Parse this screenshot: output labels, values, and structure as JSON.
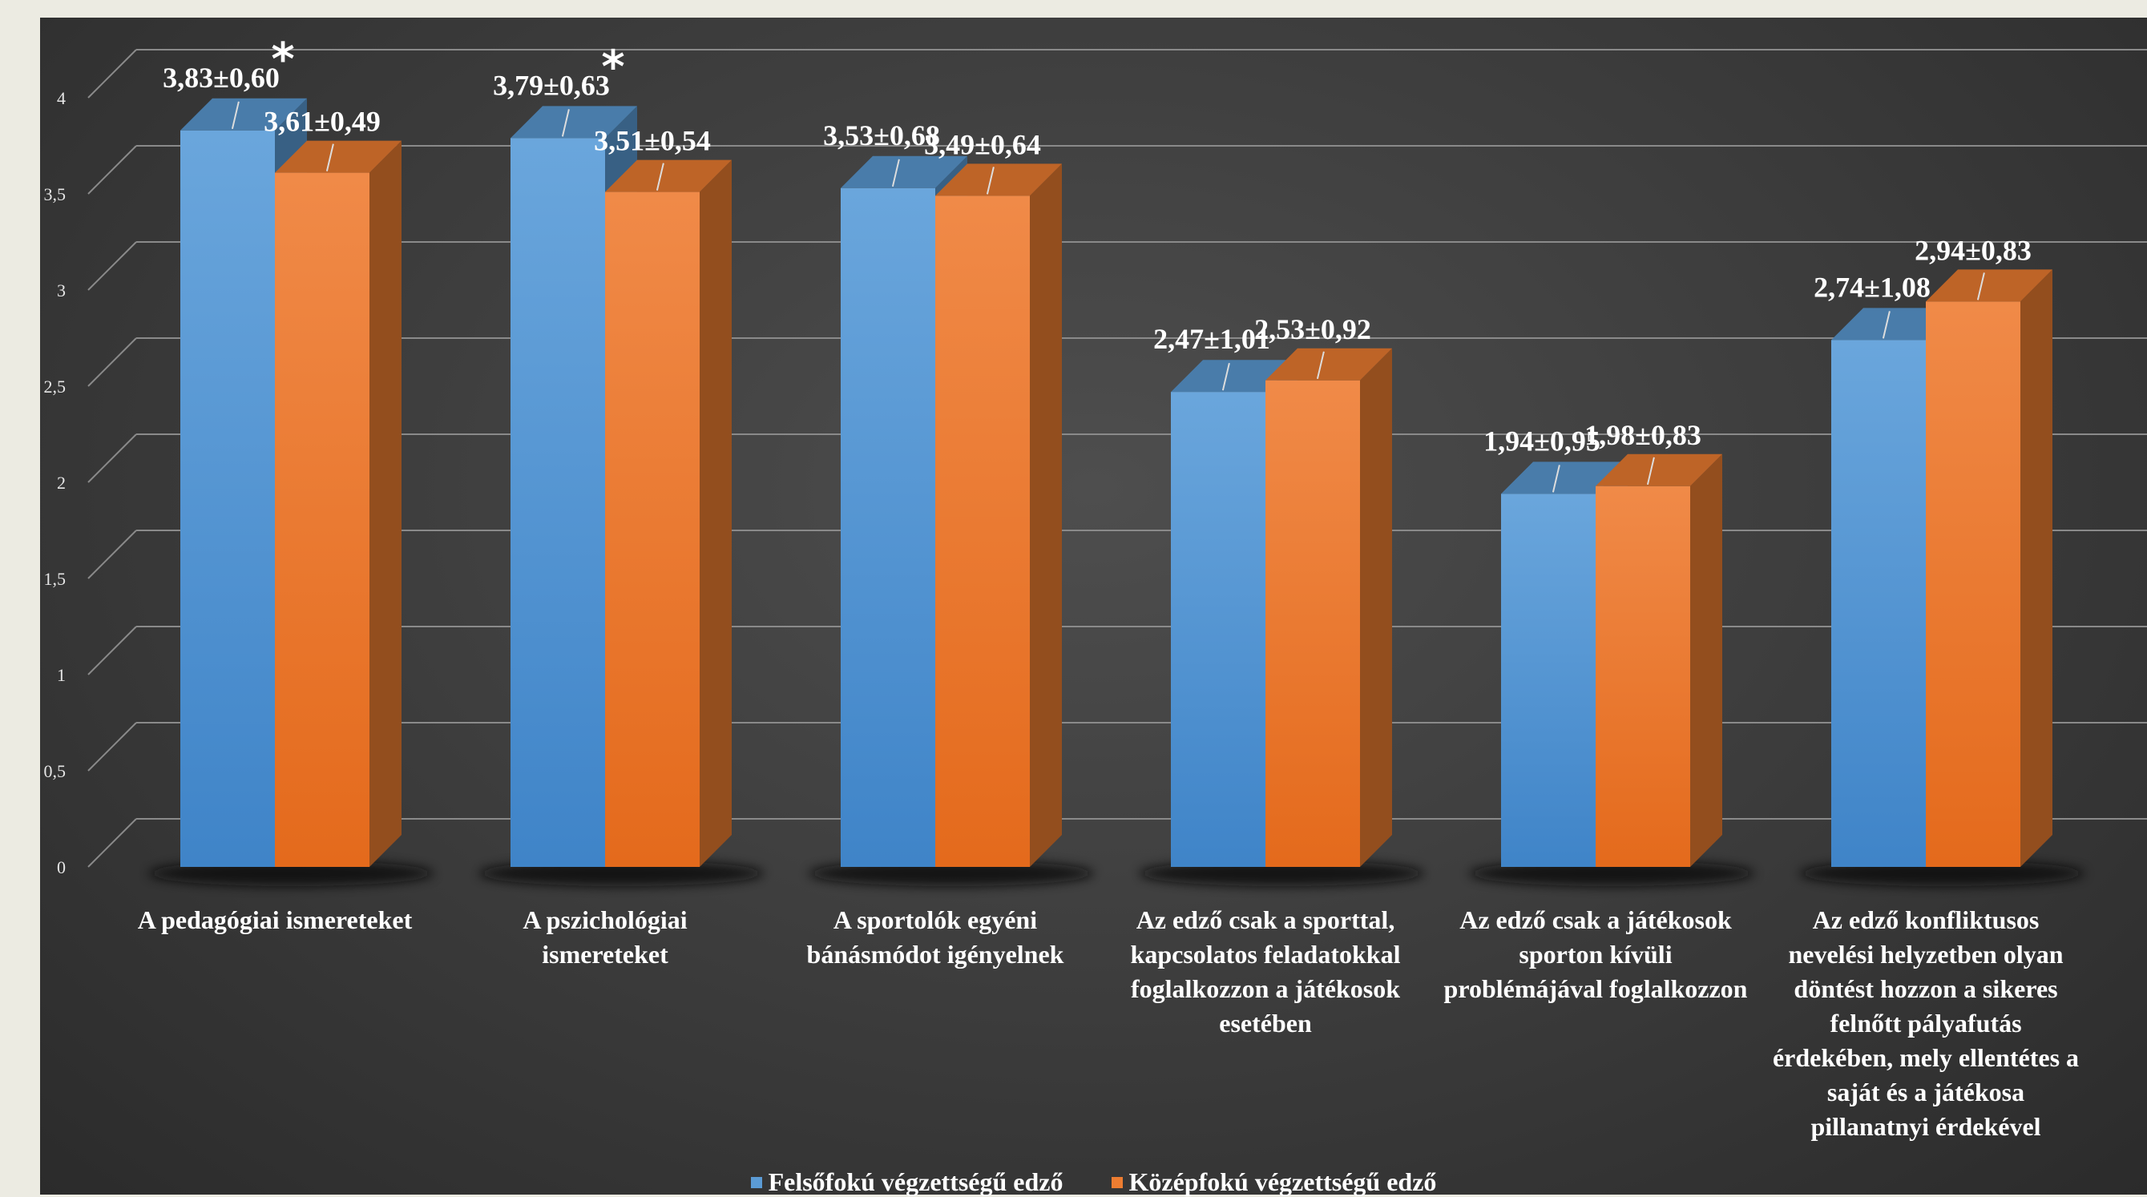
{
  "chart_data": {
    "type": "bar",
    "categories": [
      "A pedagógiai ismereteket",
      "A pszichológiai\nismereteket",
      "A sportolók egyéni\nbánásmódot igényelnek",
      "Az edző csak a sporttal,\nkapcsolatos feladatokkal\nfoglalkozzon a játékosok\nesetében",
      "Az edző csak a játékosok\nsporton kívüli\nproblémájával foglalkozzon",
      "Az edző konfliktusos\nnevelési helyzetben olyan\ndöntést hozzon a sikeres\nfelnőtt pályafutás\nérdekében, mely ellentétes a\nsaját és a játékosa\npillanatnyi érdekével"
    ],
    "series": [
      {
        "name": "Felsőfokú végzettségű edző",
        "color": "#5b9bd5",
        "values": [
          3.83,
          3.79,
          3.53,
          2.47,
          1.94,
          2.74
        ],
        "labels": [
          "3,83±0,60",
          "3,79±0,63",
          "3,53±0,68",
          "2,47±1,01",
          "1,94±0,95",
          "2,74±1,08"
        ]
      },
      {
        "name": "Középfokú végzettségű edző",
        "color": "#ed7d31",
        "values": [
          3.61,
          3.51,
          3.49,
          2.53,
          1.98,
          2.94
        ],
        "labels": [
          "3,61±0,49",
          "3,51±0,54",
          "3,49±0,64",
          "2,53±0,92",
          "1,98±0,83",
          "2,94±0,83"
        ]
      }
    ],
    "significance_markers": [
      "*",
      "*",
      "",
      "",
      "",
      ""
    ],
    "y_ticks": [
      "0",
      "0,5",
      "1",
      "1,5",
      "2",
      "2,5",
      "3",
      "3,5",
      "4"
    ],
    "ylim": [
      0,
      4
    ],
    "grid": true,
    "legend_position": "bottom",
    "style": "3d-column"
  }
}
